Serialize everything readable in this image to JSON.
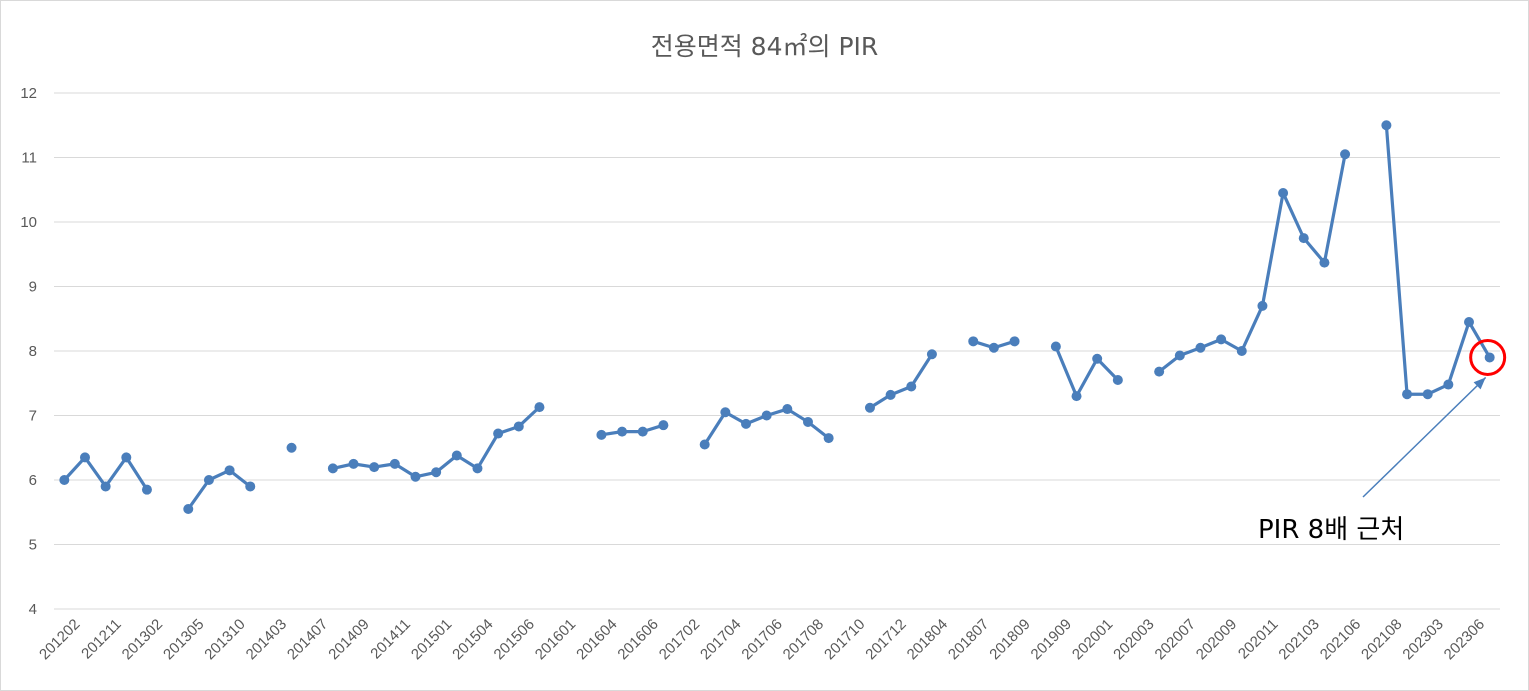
{
  "chart_data": {
    "type": "line",
    "title": "전용면적 84㎡의 PIR",
    "xlabel": "",
    "ylabel": "",
    "ylim": [
      4,
      12
    ],
    "yticks": [
      4,
      5,
      6,
      7,
      8,
      9,
      10,
      11,
      12
    ],
    "grid": true,
    "legend": "none",
    "x_tick_labels": [
      "201202",
      "201211",
      "201302",
      "201305",
      "201310",
      "201403",
      "201407",
      "201409",
      "201411",
      "201501",
      "201504",
      "201506",
      "201601",
      "201604",
      "201606",
      "201702",
      "201704",
      "201706",
      "201708",
      "201710",
      "201712",
      "201804",
      "201807",
      "201809",
      "201909",
      "202001",
      "202003",
      "202007",
      "202009",
      "202011",
      "202103",
      "202106",
      "202108",
      "202303",
      "202306"
    ],
    "series": [
      {
        "color": "#4a7ebb",
        "values": [
          6.0,
          6.35,
          5.9,
          6.35,
          5.85,
          null,
          5.55,
          6.0,
          6.15,
          5.9,
          null,
          6.5,
          null,
          6.18,
          6.25,
          6.2,
          6.25,
          6.05,
          6.12,
          6.38,
          6.18,
          6.72,
          6.83,
          7.13,
          null,
          null,
          6.7,
          6.75,
          6.75,
          6.85,
          null,
          6.55,
          7.05,
          6.87,
          7.0,
          7.1,
          6.9,
          6.65,
          null,
          7.12,
          7.32,
          7.45,
          7.95,
          null,
          8.15,
          8.05,
          8.15,
          null,
          8.07,
          7.3,
          7.88,
          7.55,
          null,
          7.68,
          7.93,
          8.05,
          8.18,
          8.0,
          8.7,
          10.45,
          9.75,
          9.37,
          11.05,
          null,
          11.5,
          7.33,
          7.33,
          7.48,
          8.45,
          7.9
        ]
      }
    ],
    "annotation": {
      "text": "PIR 8배 근처",
      "circle_color": "#ff0000",
      "arrow_color": "#4a7ebb"
    }
  }
}
